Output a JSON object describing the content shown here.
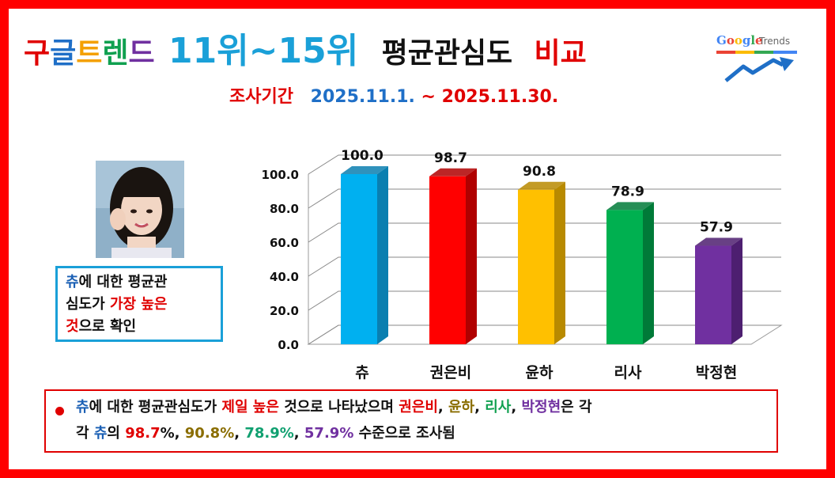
{
  "title": {
    "part1": [
      {
        "text": "구",
        "color": "#e00000"
      },
      {
        "text": "글",
        "color": "#1f6fc7"
      },
      {
        "text": "트",
        "color": "#f4a000"
      },
      {
        "text": "렌",
        "color": "#10a050"
      },
      {
        "text": "드",
        "color": "#7030a0"
      }
    ],
    "part2": "11위~15위",
    "part2_color": "#1aa0d8",
    "part3": "평균관심도",
    "part3_color": "#111111",
    "part4": "비교",
    "part4_color": "#e00000"
  },
  "subtitle": {
    "label": "조사기간",
    "start": "2025.11.1.",
    "sep": "~",
    "end": "2025.11.30."
  },
  "logo": {
    "google": "Google",
    "trends": "Trends",
    "icon": "rising-arrow-icon"
  },
  "note": {
    "name": "츄",
    "line1_rest": "에 대한 평균관",
    "line2_a": "심도가 ",
    "line2_b": "가장 높은",
    "line3_a": "것",
    "line3_b": "으로 확인"
  },
  "summary": {
    "s1": "츄",
    "s2": "에 대한 평균관심도가 ",
    "s3": "제일 높은",
    "s4": " 것으로 나타났으며 ",
    "s5": "권은비",
    "s6": ", ",
    "s7": "윤하",
    "s8": ", ",
    "s9": "리사",
    "s10": ", ",
    "s11": "박정현",
    "s12": "은 각",
    "s13": "각 ",
    "s14": "츄",
    "s15": "의 ",
    "s16": "98.7",
    "s17": "%, ",
    "s18": "90.8%",
    "s19": ", ",
    "s20": "78.9%",
    "s21": ", ",
    "s22": "57.9%",
    "s23": " 수준으로 조사됨"
  },
  "chart_data": {
    "type": "bar",
    "categories": [
      "츄",
      "권은비",
      "윤하",
      "리사",
      "박정현"
    ],
    "values": [
      100.0,
      98.7,
      90.8,
      78.9,
      57.9
    ],
    "value_labels": [
      "100.0",
      "98.7",
      "90.8",
      "78.9",
      "57.9"
    ],
    "colors": [
      "#00b0f0",
      "#ff0000",
      "#ffc000",
      "#00b050",
      "#7030a0"
    ],
    "side_colors": [
      "#0a7fb0",
      "#b00000",
      "#b88a00",
      "#007a38",
      "#4d1f70"
    ],
    "ylim": [
      0,
      100
    ],
    "yticks": [
      "0.0",
      "20.0",
      "40.0",
      "60.0",
      "80.0",
      "100.0"
    ],
    "grid": true,
    "xlabel": "",
    "ylabel": ""
  }
}
